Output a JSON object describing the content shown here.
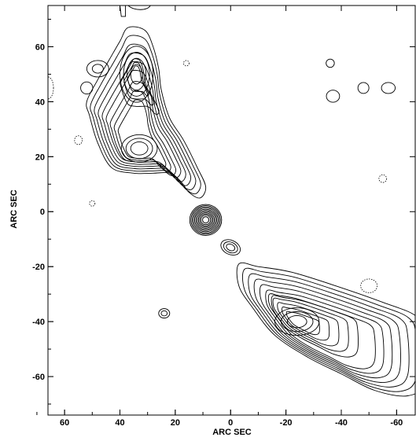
{
  "chart_data": {
    "type": "contour",
    "xlabel": "ARC SEC",
    "ylabel": "ARC SEC",
    "xlim": [
      66,
      -67
    ],
    "ylim": [
      -74,
      75
    ],
    "x_ticks": [
      60,
      40,
      20,
      0,
      -20,
      -40,
      -60
    ],
    "y_ticks": [
      60,
      40,
      20,
      0,
      -20,
      -40,
      -60
    ],
    "features": [
      {
        "name": "north-lobe",
        "center": [
          33,
          25
        ],
        "peaks": [
          [
            34,
            50
          ],
          [
            33,
            23
          ]
        ],
        "levels": 12
      },
      {
        "name": "core",
        "center": [
          9,
          -3
        ],
        "levels": 10
      },
      {
        "name": "knot",
        "center": [
          0,
          -13
        ],
        "levels": 3
      },
      {
        "name": "south-lobe",
        "center": [
          -30,
          -45
        ],
        "peaks": [
          [
            -24,
            -40
          ],
          [
            -42,
            -50
          ]
        ],
        "levels": 12
      },
      {
        "name": "blob",
        "center": [
          24,
          -37
        ],
        "levels": 2
      }
    ]
  }
}
